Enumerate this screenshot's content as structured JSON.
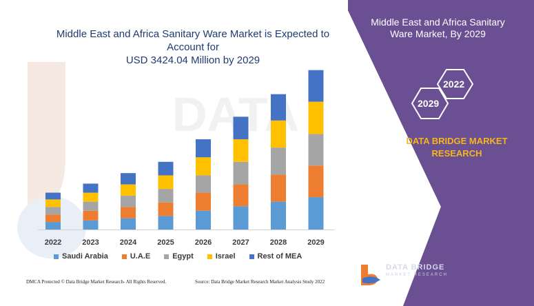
{
  "panel": {
    "title_line1": "Middle East and Africa Sanitary",
    "title_line2": "Ware Market, By 2029",
    "hex_top": "2022",
    "hex_bottom": "2029",
    "brand_line1": "DATA BRIDGE MARKET",
    "brand_line2": "RESEARCH",
    "logo_text": "DATA BRIDGE",
    "logo_sub": "MARKET RESEARCH",
    "bg_color": "#6a4f92",
    "accent_color": "#f5b61c"
  },
  "footer": {
    "left": "DMCA Protected © Data Bridge Market Research- All Rights Reserved.",
    "right": "Source: Data Bridge Market Research Market Analysis Study 2022"
  },
  "chart_data": {
    "type": "bar",
    "stacked": true,
    "title_line1": "Middle East and Africa Sanitary Ware Market is Expected to Account for",
    "title_line2": "USD 3424.04 Million by 2029",
    "categories": [
      "2022",
      "2023",
      "2024",
      "2025",
      "2026",
      "2027",
      "2028",
      "2029"
    ],
    "series": [
      {
        "name": "Saudi Arabia",
        "color": "#5b9bd5",
        "values": [
          10,
          12,
          15,
          18,
          25,
          31,
          37,
          43
        ]
      },
      {
        "name": "U.A.E",
        "color": "#ed7d31",
        "values": [
          10,
          13,
          15,
          18,
          24,
          29,
          36,
          42
        ]
      },
      {
        "name": "Egypt",
        "color": "#a5a5a5",
        "values": [
          10,
          12,
          15,
          18,
          23,
          30,
          36,
          42
        ]
      },
      {
        "name": "Israel",
        "color": "#ffc000",
        "values": [
          10,
          12,
          15,
          18,
          24,
          30,
          36,
          43
        ]
      },
      {
        "name": "Rest of MEA",
        "color": "#4472c4",
        "values": [
          9,
          12,
          15,
          18,
          24,
          30,
          35,
          42
        ]
      }
    ],
    "ylim": [
      0,
      220
    ],
    "grid": false,
    "legend_position": "bottom"
  }
}
